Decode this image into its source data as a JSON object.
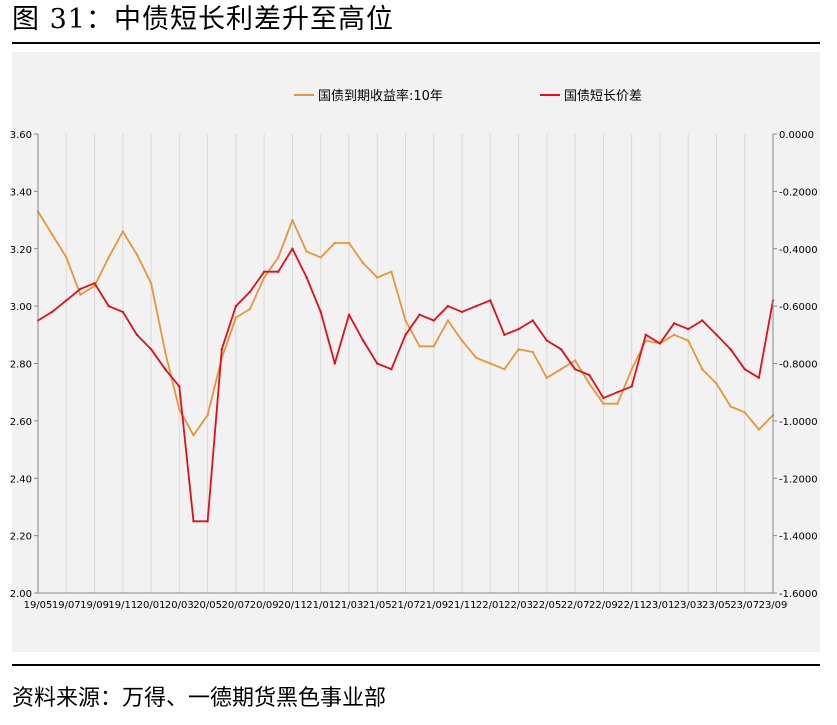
{
  "figure": {
    "title": "图 31：中债短长利差升至高位",
    "source": "资料来源：万得、一德期货黑色事业部"
  },
  "colors": {
    "orange": "#e8963c",
    "red": "#e0101a",
    "panel": "#f2f2f2",
    "grid": "#d9d9d9"
  },
  "chart_data": {
    "type": "line",
    "title": "",
    "grid": true,
    "legend_position": "top",
    "legend": [
      {
        "name": "国债到期收益率:10年",
        "color": "#e8963c",
        "axis": "left"
      },
      {
        "name": "国债短长价差",
        "color": "#e0101a",
        "axis": "right"
      }
    ],
    "left_axis": {
      "range": [
        2.0,
        3.6
      ],
      "ticks": [
        "2.00",
        "2.20",
        "2.40",
        "2.60",
        "2.80",
        "3.00",
        "3.20",
        "3.40",
        "3.60"
      ]
    },
    "right_axis": {
      "range": [
        -1.6,
        0.0
      ],
      "ticks": [
        "-1.6000",
        "-1.4000",
        "-1.2000",
        "-1.0000",
        "-0.8000",
        "-0.6000",
        "-0.4000",
        "-0.2000",
        "0.0000"
      ]
    },
    "x_tick_labels": [
      "19/05",
      "19/07",
      "19/09",
      "19/11",
      "20/01",
      "20/03",
      "20/05",
      "20/07",
      "20/09",
      "20/11",
      "21/01",
      "21/03",
      "21/05",
      "21/07",
      "21/09",
      "21/11",
      "22/01",
      "22/03",
      "22/05",
      "22/07",
      "22/09",
      "22/11",
      "23/01",
      "23/03",
      "23/05",
      "23/07",
      "23/09"
    ],
    "x": [
      "19/05",
      "19/06",
      "19/07",
      "19/08",
      "19/09",
      "19/10",
      "19/11",
      "19/12",
      "20/01",
      "20/02",
      "20/03",
      "20/04",
      "20/05",
      "20/06",
      "20/07",
      "20/08",
      "20/09",
      "20/10",
      "20/11",
      "20/12",
      "21/01",
      "21/02",
      "21/03",
      "21/04",
      "21/05",
      "21/06",
      "21/07",
      "21/08",
      "21/09",
      "21/10",
      "21/11",
      "21/12",
      "22/01",
      "22/02",
      "22/03",
      "22/04",
      "22/05",
      "22/06",
      "22/07",
      "22/08",
      "22/09",
      "22/10",
      "22/11",
      "22/12",
      "23/01",
      "23/02",
      "23/03",
      "23/04",
      "23/05",
      "23/06",
      "23/07",
      "23/08",
      "23/09"
    ],
    "series": [
      {
        "name": "国债到期收益率:10年",
        "axis": "left",
        "values": [
          3.33,
          3.25,
          3.17,
          3.04,
          3.07,
          3.17,
          3.26,
          3.18,
          3.08,
          2.84,
          2.64,
          2.55,
          2.62,
          2.82,
          2.96,
          2.99,
          3.1,
          3.17,
          3.3,
          3.19,
          3.17,
          3.22,
          3.22,
          3.15,
          3.1,
          3.12,
          2.95,
          2.86,
          2.86,
          2.95,
          2.88,
          2.82,
          2.8,
          2.78,
          2.85,
          2.84,
          2.75,
          2.78,
          2.81,
          2.73,
          2.66,
          2.66,
          2.78,
          2.88,
          2.87,
          2.9,
          2.88,
          2.78,
          2.73,
          2.65,
          2.63,
          2.57,
          2.62
        ]
      },
      {
        "name": "国债短长价差",
        "axis": "right",
        "values": [
          -0.65,
          -0.62,
          -0.58,
          -0.54,
          -0.52,
          -0.6,
          -0.62,
          -0.7,
          -0.75,
          -0.82,
          -0.88,
          -1.35,
          -1.35,
          -0.75,
          -0.6,
          -0.55,
          -0.48,
          -0.48,
          -0.4,
          -0.5,
          -0.62,
          -0.8,
          -0.63,
          -0.72,
          -0.8,
          -0.82,
          -0.7,
          -0.63,
          -0.65,
          -0.6,
          -0.62,
          -0.6,
          -0.58,
          -0.7,
          -0.68,
          -0.65,
          -0.72,
          -0.75,
          -0.82,
          -0.84,
          -0.92,
          -0.9,
          -0.88,
          -0.7,
          -0.73,
          -0.66,
          -0.68,
          -0.65,
          -0.7,
          -0.75,
          -0.82,
          -0.85,
          -0.58
        ]
      }
    ]
  }
}
